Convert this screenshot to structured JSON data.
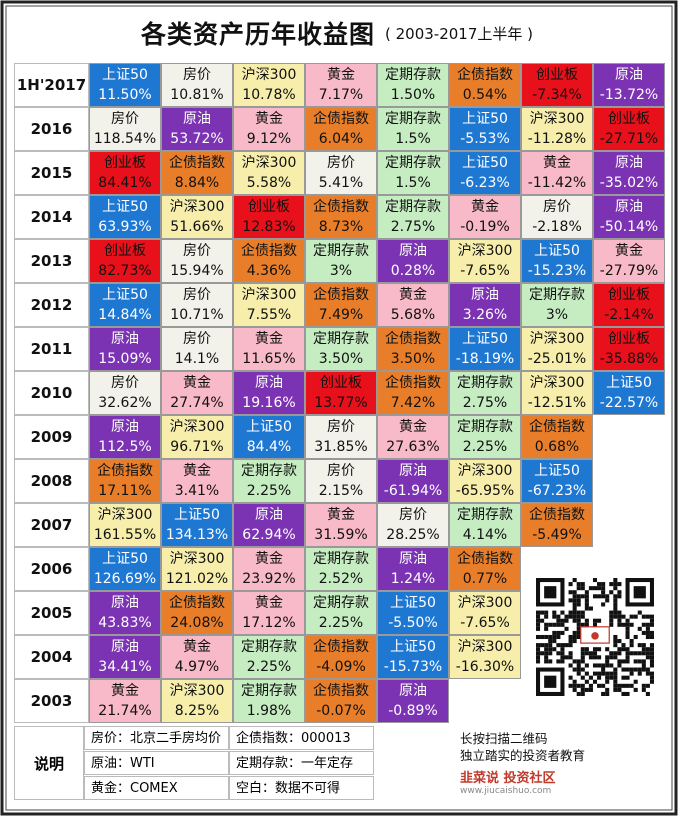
{
  "title": {
    "main": "各类资产历年收益图",
    "sub": "( 2003-2017上半年 )"
  },
  "colors": {
    "上证50": "#1e78d2",
    "房价": "#f2f2ea",
    "沪深300": "#f6eeaa",
    "黄金": "#f8b9c8",
    "定期存款": "#c6edc2",
    "企债指数": "#e87e2a",
    "创业板": "#e8101a",
    "原油": "#7b33b3"
  },
  "text_colors": {
    "上证50": "#ffffff",
    "房价": "#111111",
    "沪深300": "#111111",
    "黄金": "#111111",
    "定期存款": "#111111",
    "企债指数": "#111111",
    "创业板": "#111111",
    "原油": "#ffffff"
  },
  "chart_data": {
    "type": "table",
    "title": "各类资产历年收益图",
    "subtitle": "( 2003-2017上半年 )",
    "rows": [
      {
        "year": "1H'2017",
        "cells": [
          {
            "asset": "上证50",
            "value": "11.50%"
          },
          {
            "asset": "房价",
            "value": "10.81%"
          },
          {
            "asset": "沪深300",
            "value": "10.78%"
          },
          {
            "asset": "黄金",
            "value": "7.17%"
          },
          {
            "asset": "定期存款",
            "value": "1.50%"
          },
          {
            "asset": "企债指数",
            "value": "0.54%"
          },
          {
            "asset": "创业板",
            "value": "-7.34%"
          },
          {
            "asset": "原油",
            "value": "-13.72%"
          }
        ]
      },
      {
        "year": "2016",
        "cells": [
          {
            "asset": "房价",
            "value": "118.54%"
          },
          {
            "asset": "原油",
            "value": "53.72%"
          },
          {
            "asset": "黄金",
            "value": "9.12%"
          },
          {
            "asset": "企债指数",
            "value": "6.04%"
          },
          {
            "asset": "定期存款",
            "value": "1.5%"
          },
          {
            "asset": "上证50",
            "value": "-5.53%"
          },
          {
            "asset": "沪深300",
            "value": "-11.28%"
          },
          {
            "asset": "创业板",
            "value": "-27.71%"
          }
        ]
      },
      {
        "year": "2015",
        "cells": [
          {
            "asset": "创业板",
            "value": "84.41%"
          },
          {
            "asset": "企债指数",
            "value": "8.84%"
          },
          {
            "asset": "沪深300",
            "value": "5.58%"
          },
          {
            "asset": "房价",
            "value": "5.41%"
          },
          {
            "asset": "定期存款",
            "value": "1.5%"
          },
          {
            "asset": "上证50",
            "value": "-6.23%"
          },
          {
            "asset": "黄金",
            "value": "-11.42%"
          },
          {
            "asset": "原油",
            "value": "-35.02%"
          }
        ]
      },
      {
        "year": "2014",
        "cells": [
          {
            "asset": "上证50",
            "value": "63.93%"
          },
          {
            "asset": "沪深300",
            "value": "51.66%"
          },
          {
            "asset": "创业板",
            "value": "12.83%"
          },
          {
            "asset": "企债指数",
            "value": "8.73%"
          },
          {
            "asset": "定期存款",
            "value": "2.75%"
          },
          {
            "asset": "黄金",
            "value": "-0.19%"
          },
          {
            "asset": "房价",
            "value": "-2.18%"
          },
          {
            "asset": "原油",
            "value": "-50.14%"
          }
        ]
      },
      {
        "year": "2013",
        "cells": [
          {
            "asset": "创业板",
            "value": "82.73%"
          },
          {
            "asset": "房价",
            "value": "15.94%"
          },
          {
            "asset": "企债指数",
            "value": "4.36%"
          },
          {
            "asset": "定期存款",
            "value": "3%"
          },
          {
            "asset": "原油",
            "value": "0.28%"
          },
          {
            "asset": "沪深300",
            "value": "-7.65%"
          },
          {
            "asset": "上证50",
            "value": "-15.23%"
          },
          {
            "asset": "黄金",
            "value": "-27.79%"
          }
        ]
      },
      {
        "year": "2012",
        "cells": [
          {
            "asset": "上证50",
            "value": "14.84%"
          },
          {
            "asset": "房价",
            "value": "10.71%"
          },
          {
            "asset": "沪深300",
            "value": "7.55%"
          },
          {
            "asset": "企债指数",
            "value": "7.49%"
          },
          {
            "asset": "黄金",
            "value": "5.68%"
          },
          {
            "asset": "原油",
            "value": "3.26%"
          },
          {
            "asset": "定期存款",
            "value": "3%"
          },
          {
            "asset": "创业板",
            "value": "-2.14%"
          }
        ]
      },
      {
        "year": "2011",
        "cells": [
          {
            "asset": "原油",
            "value": "15.09%"
          },
          {
            "asset": "房价",
            "value": "14.1%"
          },
          {
            "asset": "黄金",
            "value": "11.65%"
          },
          {
            "asset": "定期存款",
            "value": "3.50%"
          },
          {
            "asset": "企债指数",
            "value": "3.50%"
          },
          {
            "asset": "上证50",
            "value": "-18.19%"
          },
          {
            "asset": "沪深300",
            "value": "-25.01%"
          },
          {
            "asset": "创业板",
            "value": "-35.88%"
          }
        ]
      },
      {
        "year": "2010",
        "cells": [
          {
            "asset": "房价",
            "value": "32.62%"
          },
          {
            "asset": "黄金",
            "value": "27.74%"
          },
          {
            "asset": "原油",
            "value": "19.16%"
          },
          {
            "asset": "创业板",
            "value": "13.77%"
          },
          {
            "asset": "企债指数",
            "value": "7.42%"
          },
          {
            "asset": "定期存款",
            "value": "2.75%"
          },
          {
            "asset": "沪深300",
            "value": "-12.51%"
          },
          {
            "asset": "上证50",
            "value": "-22.57%"
          }
        ]
      },
      {
        "year": "2009",
        "cells": [
          {
            "asset": "原油",
            "value": "112.5%"
          },
          {
            "asset": "沪深300",
            "value": "96.71%"
          },
          {
            "asset": "上证50",
            "value": "84.4%"
          },
          {
            "asset": "房价",
            "value": "31.85%"
          },
          {
            "asset": "黄金",
            "value": "27.63%"
          },
          {
            "asset": "定期存款",
            "value": "2.25%"
          },
          {
            "asset": "企债指数",
            "value": "0.68%"
          }
        ]
      },
      {
        "year": "2008",
        "cells": [
          {
            "asset": "企债指数",
            "value": "17.11%"
          },
          {
            "asset": "黄金",
            "value": "3.41%"
          },
          {
            "asset": "定期存款",
            "value": "2.25%"
          },
          {
            "asset": "房价",
            "value": "2.15%"
          },
          {
            "asset": "原油",
            "value": "-61.94%"
          },
          {
            "asset": "沪深300",
            "value": "-65.95%"
          },
          {
            "asset": "上证50",
            "value": "-67.23%"
          }
        ]
      },
      {
        "year": "2007",
        "cells": [
          {
            "asset": "沪深300",
            "value": "161.55%"
          },
          {
            "asset": "上证50",
            "value": "134.13%"
          },
          {
            "asset": "原油",
            "value": "62.94%"
          },
          {
            "asset": "黄金",
            "value": "31.59%"
          },
          {
            "asset": "房价",
            "value": "28.25%"
          },
          {
            "asset": "定期存款",
            "value": "4.14%"
          },
          {
            "asset": "企债指数",
            "value": "-5.49%"
          }
        ]
      },
      {
        "year": "2006",
        "cells": [
          {
            "asset": "上证50",
            "value": "126.69%"
          },
          {
            "asset": "沪深300",
            "value": "121.02%"
          },
          {
            "asset": "黄金",
            "value": "23.92%"
          },
          {
            "asset": "定期存款",
            "value": "2.52%"
          },
          {
            "asset": "原油",
            "value": "1.24%"
          },
          {
            "asset": "企债指数",
            "value": "0.77%"
          }
        ]
      },
      {
        "year": "2005",
        "cells": [
          {
            "asset": "原油",
            "value": "43.83%"
          },
          {
            "asset": "企债指数",
            "value": "24.08%"
          },
          {
            "asset": "黄金",
            "value": "17.12%"
          },
          {
            "asset": "定期存款",
            "value": "2.25%"
          },
          {
            "asset": "上证50",
            "value": "-5.50%"
          },
          {
            "asset": "沪深300",
            "value": "-7.65%"
          }
        ]
      },
      {
        "year": "2004",
        "cells": [
          {
            "asset": "原油",
            "value": "34.41%"
          },
          {
            "asset": "黄金",
            "value": "4.97%"
          },
          {
            "asset": "定期存款",
            "value": "2.25%"
          },
          {
            "asset": "企债指数",
            "value": "-4.09%"
          },
          {
            "asset": "上证50",
            "value": "-15.73%"
          },
          {
            "asset": "沪深300",
            "value": "-16.30%"
          }
        ]
      },
      {
        "year": "2003",
        "cells": [
          {
            "asset": "黄金",
            "value": "21.74%"
          },
          {
            "asset": "沪深300",
            "value": "8.25%"
          },
          {
            "asset": "定期存款",
            "value": "1.98%"
          },
          {
            "asset": "企债指数",
            "value": "-0.07%"
          },
          {
            "asset": "原油",
            "value": "-0.89%"
          }
        ]
      }
    ]
  },
  "notes": {
    "label": "说明",
    "items": [
      "房价：北京二手房均价",
      "企债指数：000013",
      "原油：WTI",
      "定期存款：一年定存",
      "黄金：COMEX",
      "空白：数据不可得"
    ]
  },
  "promo": {
    "line1": "长按扫描二维码",
    "line2": "独立踏实的投资者教育",
    "brand": "韭菜说 投资社区",
    "site": "www.jiucaishuo.com"
  }
}
